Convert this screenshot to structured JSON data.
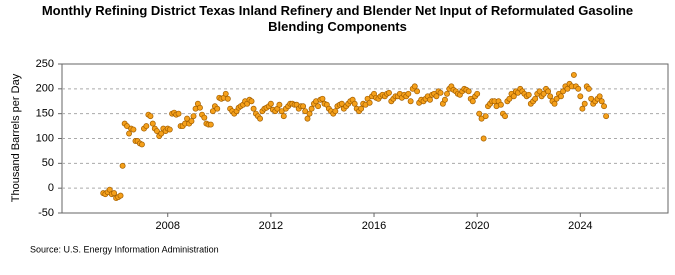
{
  "chart_data": {
    "type": "scatter",
    "title": "Monthly Refining District Texas Inland Refinery and Blender Net Input of Reformulated Gasoline Blending Components",
    "y_label": "Thousand Barrels per Day",
    "source": "Source: U.S. Energy Information Administration",
    "xlim": [
      2003.9,
      2027.4
    ],
    "xticks": [
      2008,
      2012,
      2016,
      2020,
      2024
    ],
    "ylim": [
      -50,
      250
    ],
    "yticks": [
      -50,
      0,
      50,
      100,
      150,
      200,
      250
    ],
    "grid": true,
    "color": "#f5a01a",
    "edge_color": "#a35f00",
    "x": [
      2005.5,
      2005.58,
      2005.67,
      2005.75,
      2005.83,
      2005.92,
      2006,
      2006.08,
      2006.17,
      2006.25,
      2006.33,
      2006.42,
      2006.5,
      2006.58,
      2006.67,
      2006.75,
      2006.83,
      2006.92,
      2007,
      2007.08,
      2007.17,
      2007.25,
      2007.33,
      2007.42,
      2007.5,
      2007.58,
      2007.67,
      2007.75,
      2007.83,
      2007.92,
      2008,
      2008.08,
      2008.17,
      2008.25,
      2008.33,
      2008.42,
      2008.5,
      2008.58,
      2008.67,
      2008.75,
      2008.83,
      2008.92,
      2009,
      2009.08,
      2009.17,
      2009.25,
      2009.33,
      2009.42,
      2009.5,
      2009.58,
      2009.67,
      2009.75,
      2009.83,
      2009.92,
      2010,
      2010.08,
      2010.17,
      2010.25,
      2010.33,
      2010.42,
      2010.5,
      2010.58,
      2010.67,
      2010.75,
      2010.83,
      2010.92,
      2011,
      2011.08,
      2011.17,
      2011.25,
      2011.33,
      2011.42,
      2011.5,
      2011.58,
      2011.67,
      2011.75,
      2011.83,
      2011.92,
      2012,
      2012.08,
      2012.17,
      2012.25,
      2012.33,
      2012.42,
      2012.5,
      2012.58,
      2012.67,
      2012.75,
      2012.83,
      2012.92,
      2013,
      2013.08,
      2013.17,
      2013.25,
      2013.33,
      2013.42,
      2013.5,
      2013.58,
      2013.67,
      2013.75,
      2013.83,
      2013.92,
      2014,
      2014.08,
      2014.17,
      2014.25,
      2014.33,
      2014.42,
      2014.5,
      2014.58,
      2014.67,
      2014.75,
      2014.83,
      2014.92,
      2015,
      2015.08,
      2015.17,
      2015.25,
      2015.33,
      2015.42,
      2015.5,
      2015.58,
      2015.67,
      2015.75,
      2015.83,
      2015.92,
      2016,
      2016.08,
      2016.17,
      2016.25,
      2016.33,
      2016.42,
      2016.5,
      2016.58,
      2016.67,
      2016.75,
      2016.83,
      2016.92,
      2017,
      2017.08,
      2017.17,
      2017.25,
      2017.33,
      2017.42,
      2017.5,
      2017.58,
      2017.67,
      2017.75,
      2017.83,
      2017.92,
      2018,
      2018.08,
      2018.17,
      2018.25,
      2018.33,
      2018.42,
      2018.5,
      2018.58,
      2018.67,
      2018.75,
      2018.83,
      2018.92,
      2019,
      2019.08,
      2019.17,
      2019.25,
      2019.33,
      2019.42,
      2019.5,
      2019.58,
      2019.67,
      2019.75,
      2019.83,
      2019.92,
      2020,
      2020.08,
      2020.17,
      2020.25,
      2020.33,
      2020.42,
      2020.5,
      2020.58,
      2020.67,
      2020.75,
      2020.83,
      2020.92,
      2021,
      2021.08,
      2021.17,
      2021.25,
      2021.33,
      2021.42,
      2021.5,
      2021.58,
      2021.67,
      2021.75,
      2021.83,
      2021.92,
      2022,
      2022.08,
      2022.17,
      2022.25,
      2022.33,
      2022.42,
      2022.5,
      2022.58,
      2022.67,
      2022.75,
      2022.83,
      2022.92,
      2023,
      2023.08,
      2023.17,
      2023.25,
      2023.33,
      2023.42,
      2023.5,
      2023.58,
      2023.67,
      2023.75,
      2023.83,
      2023.92,
      2024,
      2024.08,
      2024.17,
      2024.25,
      2024.33,
      2024.42,
      2024.5,
      2024.58,
      2024.67,
      2024.75,
      2024.83,
      2024.92,
      2025
    ],
    "values": [
      -10,
      -12,
      -8,
      -3,
      -12,
      -10,
      -20,
      -18,
      -15,
      45,
      130,
      125,
      110,
      120,
      118,
      95,
      95,
      90,
      88,
      120,
      125,
      148,
      145,
      130,
      120,
      115,
      105,
      110,
      120,
      115,
      120,
      118,
      150,
      152,
      148,
      150,
      125,
      125,
      130,
      140,
      130,
      135,
      145,
      160,
      170,
      162,
      148,
      142,
      130,
      128,
      128,
      155,
      165,
      160,
      182,
      180,
      182,
      190,
      180,
      160,
      155,
      150,
      155,
      162,
      165,
      168,
      175,
      170,
      178,
      175,
      160,
      150,
      145,
      140,
      155,
      160,
      162,
      165,
      170,
      158,
      155,
      160,
      168,
      155,
      145,
      160,
      165,
      170,
      170,
      168,
      168,
      160,
      165,
      165,
      155,
      140,
      150,
      160,
      170,
      175,
      165,
      178,
      180,
      170,
      168,
      160,
      155,
      150,
      155,
      165,
      168,
      170,
      160,
      165,
      170,
      175,
      178,
      170,
      160,
      155,
      160,
      170,
      168,
      180,
      172,
      185,
      190,
      182,
      180,
      185,
      188,
      185,
      190,
      192,
      175,
      180,
      185,
      185,
      190,
      182,
      188,
      185,
      190,
      175,
      200,
      205,
      195,
      172,
      178,
      175,
      180,
      185,
      178,
      188,
      190,
      185,
      195,
      192,
      170,
      178,
      190,
      200,
      205,
      198,
      195,
      190,
      188,
      195,
      200,
      198,
      195,
      180,
      175,
      185,
      190,
      150,
      140,
      100,
      145,
      165,
      170,
      175,
      175,
      165,
      175,
      168,
      150,
      145,
      175,
      180,
      190,
      185,
      195,
      192,
      200,
      195,
      190,
      185,
      188,
      170,
      175,
      180,
      190,
      195,
      185,
      190,
      200,
      195,
      185,
      175,
      170,
      180,
      190,
      185,
      195,
      205,
      200,
      210,
      205,
      228,
      205,
      200,
      185,
      160,
      170,
      205,
      200,
      180,
      170,
      175,
      180,
      185,
      175,
      165,
      145
    ]
  }
}
